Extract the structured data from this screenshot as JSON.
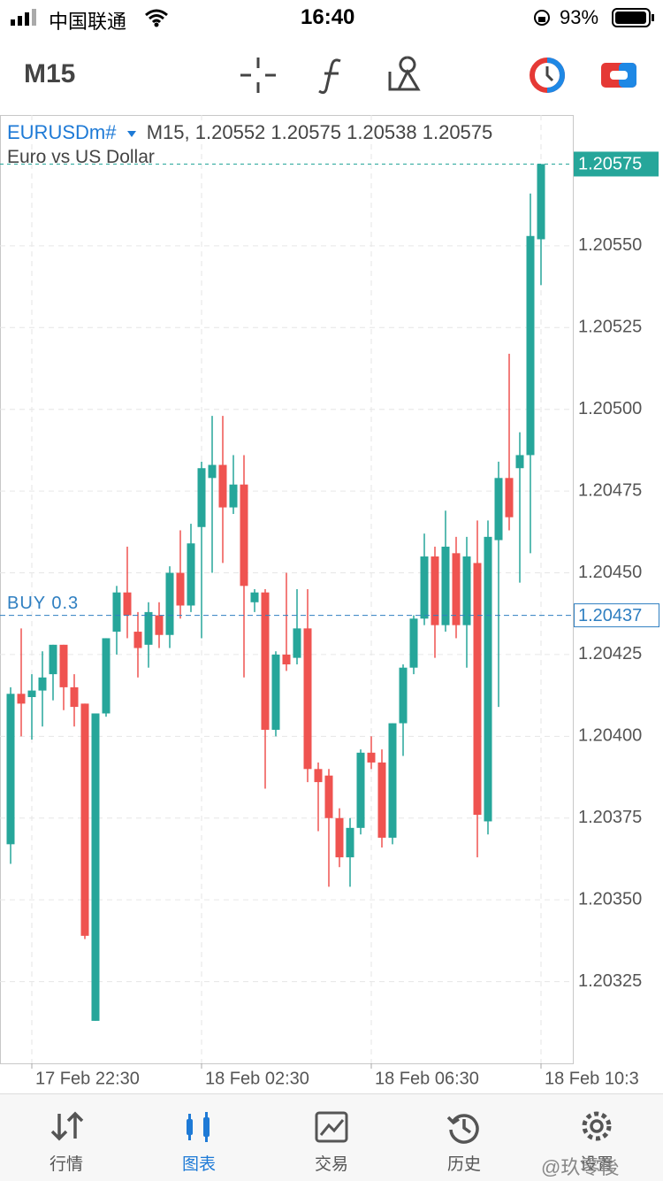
{
  "status_bar": {
    "carrier": "中国联通",
    "time": "16:40",
    "battery": "93%"
  },
  "toolbar": {
    "timeframe": "M15"
  },
  "chart_data": {
    "type": "candlestick",
    "symbol": "EURUSDm#",
    "timeframe": "M15,",
    "ohlc": [
      1.20552,
      1.20575,
      1.20538,
      1.20575
    ],
    "subtitle": "Euro vs US Dollar",
    "categories": [
      null,
      null,
      "17 Feb 22:30",
      null,
      null,
      null,
      null,
      null,
      null,
      null,
      null,
      null,
      null,
      null,
      null,
      null,
      null,
      null,
      "18 Feb 02:30",
      null,
      null,
      null,
      null,
      null,
      null,
      null,
      null,
      null,
      null,
      null,
      null,
      null,
      null,
      null,
      "18 Feb 06:30",
      null,
      null,
      null,
      null,
      null,
      null,
      null,
      null,
      null,
      null,
      null,
      null,
      null,
      null,
      null,
      "18 Feb 10:3"
    ],
    "open": [
      1.20367,
      1.20413,
      1.20412,
      1.20414,
      1.20419,
      1.20428,
      1.20415,
      1.2041,
      1.20313,
      1.20407,
      1.20432,
      1.20444,
      1.20432,
      1.20428,
      1.20437,
      1.20431,
      1.2045,
      1.2044,
      1.20464,
      1.20479,
      1.20483,
      1.2047,
      1.20477,
      1.20441,
      1.20444,
      1.20402,
      1.20425,
      1.20424,
      1.20433,
      1.2039,
      1.20388,
      1.20375,
      1.20363,
      1.20372,
      1.20395,
      1.20392,
      1.20369,
      1.20404,
      1.20421,
      1.20436,
      1.20455,
      1.20434,
      1.20456,
      1.20434,
      1.20453,
      1.20374,
      1.2046,
      1.20479,
      1.20482,
      1.20486,
      1.20552
    ],
    "high": [
      1.20415,
      1.20433,
      1.20419,
      1.20426,
      1.20428,
      1.20428,
      1.20419,
      1.2041,
      1.20407,
      1.2043,
      1.20446,
      1.20458,
      1.20438,
      1.20441,
      1.20441,
      1.20452,
      1.20463,
      1.20465,
      1.20484,
      1.20498,
      1.20498,
      1.20486,
      1.20486,
      1.20445,
      1.20445,
      1.20426,
      1.2045,
      1.20445,
      1.20445,
      1.20392,
      1.2039,
      1.20378,
      1.20375,
      1.20396,
      1.204,
      1.20396,
      1.20404,
      1.20422,
      1.20437,
      1.20462,
      1.20458,
      1.20469,
      1.20461,
      1.20461,
      1.20466,
      1.20466,
      1.20484,
      1.20517,
      1.20493,
      1.20566,
      1.20575
    ],
    "low": [
      1.20361,
      1.204,
      1.20399,
      1.20403,
      1.20411,
      1.20408,
      1.20403,
      1.20338,
      1.20313,
      1.20406,
      1.20425,
      1.2043,
      1.20418,
      1.20421,
      1.20427,
      1.20427,
      1.20436,
      1.20438,
      1.2043,
      1.2045,
      1.20453,
      1.20468,
      1.20418,
      1.20438,
      1.20384,
      1.204,
      1.2042,
      1.20422,
      1.20386,
      1.20371,
      1.20354,
      1.2036,
      1.20354,
      1.2037,
      1.2039,
      1.20366,
      1.20367,
      1.20394,
      1.20419,
      1.20434,
      1.20424,
      1.20432,
      1.2043,
      1.20421,
      1.20363,
      1.2037,
      1.20409,
      1.20463,
      1.20447,
      1.20456,
      1.20538
    ],
    "close": [
      1.20413,
      1.2041,
      1.20414,
      1.20418,
      1.20428,
      1.20415,
      1.20409,
      1.20339,
      1.20407,
      1.2043,
      1.20444,
      1.20437,
      1.20427,
      1.20438,
      1.20431,
      1.2045,
      1.2044,
      1.20459,
      1.20482,
      1.20483,
      1.2047,
      1.20477,
      1.20446,
      1.20444,
      1.20402,
      1.20425,
      1.20422,
      1.20433,
      1.2039,
      1.20386,
      1.20375,
      1.20363,
      1.20372,
      1.20395,
      1.20392,
      1.20369,
      1.20404,
      1.20421,
      1.20436,
      1.20455,
      1.20434,
      1.20458,
      1.20434,
      1.20455,
      1.20376,
      1.20461,
      1.20479,
      1.20467,
      1.20486,
      1.20553,
      1.20575
    ],
    "up_color": "#26a69a",
    "down_color": "#ef5350",
    "ylim": [
      1.203,
      1.2059
    ],
    "yticks": [
      {
        "value": 1.2055,
        "label": "1.20550"
      },
      1.20525,
      {
        "value": 1.205,
        "label": "1.20500"
      },
      1.20475,
      {
        "value": 1.2045,
        "label": "1.20450"
      },
      1.20425,
      {
        "value": 1.204,
        "label": "1.20400"
      },
      1.20375,
      {
        "value": 1.2035,
        "label": "1.20350"
      },
      1.20325
    ],
    "grid": true,
    "current_price": 1.20575,
    "order_label": "BUY 0.3",
    "order_price": 1.20437
  },
  "tab_bar": {
    "tabs": [
      "行情",
      "图表",
      "交易",
      "历史",
      "设置"
    ],
    "active": 1
  },
  "watermark": "@玖零後"
}
